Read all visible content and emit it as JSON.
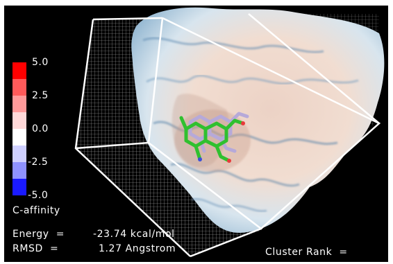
{
  "legend": {
    "title": "C-affinity",
    "ticks": [
      "5.0",
      "2.5",
      "0.0",
      "-2.5",
      "-5.0"
    ],
    "colors": {
      "max": "#ff0000",
      "mid": "#ffffff",
      "min": "#1a1aff"
    }
  },
  "energy": {
    "label": "Energy  =",
    "value": "-23.74 kcal/mol"
  },
  "rmsd": {
    "label": "RMSD  =",
    "value": "1.27 Angstrom"
  },
  "cluster_rank": {
    "label": "Cluster Rank  ="
  },
  "scene": {
    "background": "#000000",
    "surface_colors": [
      "#f2dccf",
      "#d7e6ef",
      "#5d8fb8",
      "#c9a18f"
    ],
    "ligand_colors": [
      "#2fc02f",
      "#b6a9d9",
      "#e83b3b",
      "#3b4fd8"
    ]
  }
}
